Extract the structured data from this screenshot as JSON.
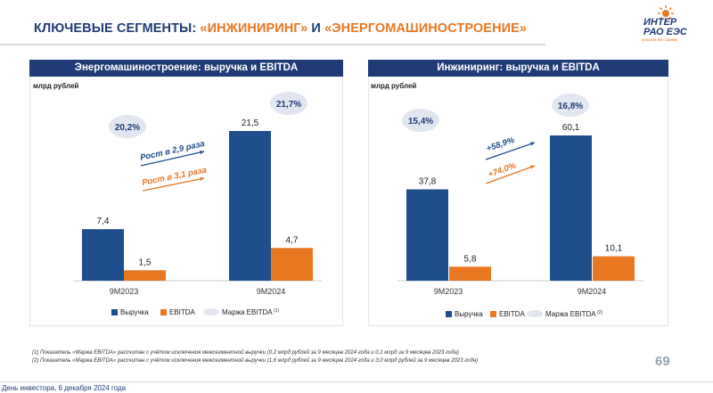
{
  "slide": {
    "title_part1": "КЛЮЧЕВЫЕ СЕГМЕНТЫ: ",
    "title_part2": "«ИНЖИНИРИНГ»",
    "title_part3": " И ",
    "title_part4": "«ЭНЕРГОМАШИНОСТРОЕНИЕ»",
    "page_number": "69",
    "bottom_text": "День инвестора, 6 декабря 2024 года"
  },
  "logo": {
    "line1": "ИНТЕР",
    "line2": "РАО ЕЭС",
    "tagline": "энергия без границ"
  },
  "colors": {
    "navy": "#1f3c76",
    "bar_blue": "#1f4e8c",
    "orange": "#e87722",
    "margin_ellipse": "#e1e6f0"
  },
  "footnotes": [
    "(1)    Показатель «Маржа EBITDA» рассчитан с учётом исключения межсегментной выручки (0,2 млрд рублей за 9 месяцев 2024 года и 0,1 млрд за 9 месяцев 2023 года)",
    "(2)    Показатель «Маржа EBITDA» рассчитан с учётом исключения межсегментной выручки (1,6 млрд рублей за 9 месяцев 2024 года и 3,0 млрд рублей за 9 месяцев 2023 года)"
  ],
  "chart_data": [
    {
      "type": "bar",
      "title": "Энергомашиностроение: выручка и EBITDA",
      "unit_label": "млрд рублей",
      "categories": [
        "9М2023",
        "9М2024"
      ],
      "series": [
        {
          "name": "Выручка",
          "values": [
            7.4,
            21.5
          ],
          "labels": [
            "7,4",
            "21,5"
          ],
          "color": "#1f4e8c"
        },
        {
          "name": "EBITDA",
          "values": [
            1.5,
            4.7
          ],
          "labels": [
            "1,5",
            "4,7"
          ],
          "color": "#e87722"
        }
      ],
      "margins": [
        "20,2%",
        "21,7%"
      ],
      "margin_legend": "Маржа EBITDA",
      "margin_legend_sup": "(1)",
      "growth": [
        {
          "text": "Рост в 2,9 раза",
          "color": "#1f4e8c"
        },
        {
          "text": "Рост в 3,1 раза",
          "color": "#e87722"
        }
      ],
      "ylim": [
        0,
        21.5
      ]
    },
    {
      "type": "bar",
      "title": "Инжиниринг: выручка и EBITDA",
      "unit_label": "млрд рублей",
      "categories": [
        "9М2023",
        "9М2024"
      ],
      "series": [
        {
          "name": "Выручка",
          "values": [
            37.8,
            60.1
          ],
          "labels": [
            "37,8",
            "60,1"
          ],
          "color": "#1f4e8c"
        },
        {
          "name": "EBITDA",
          "values": [
            5.8,
            10.1
          ],
          "labels": [
            "5,8",
            "10,1"
          ],
          "color": "#e87722"
        }
      ],
      "margins": [
        "15,4%",
        "16,8%"
      ],
      "margin_legend": "Маржа EBITDA",
      "margin_legend_sup": "(2)",
      "growth": [
        {
          "text": "+58,9%",
          "color": "#1f4e8c"
        },
        {
          "text": "+74,0%",
          "color": "#e87722"
        }
      ],
      "ylim": [
        0,
        60.1
      ]
    }
  ]
}
